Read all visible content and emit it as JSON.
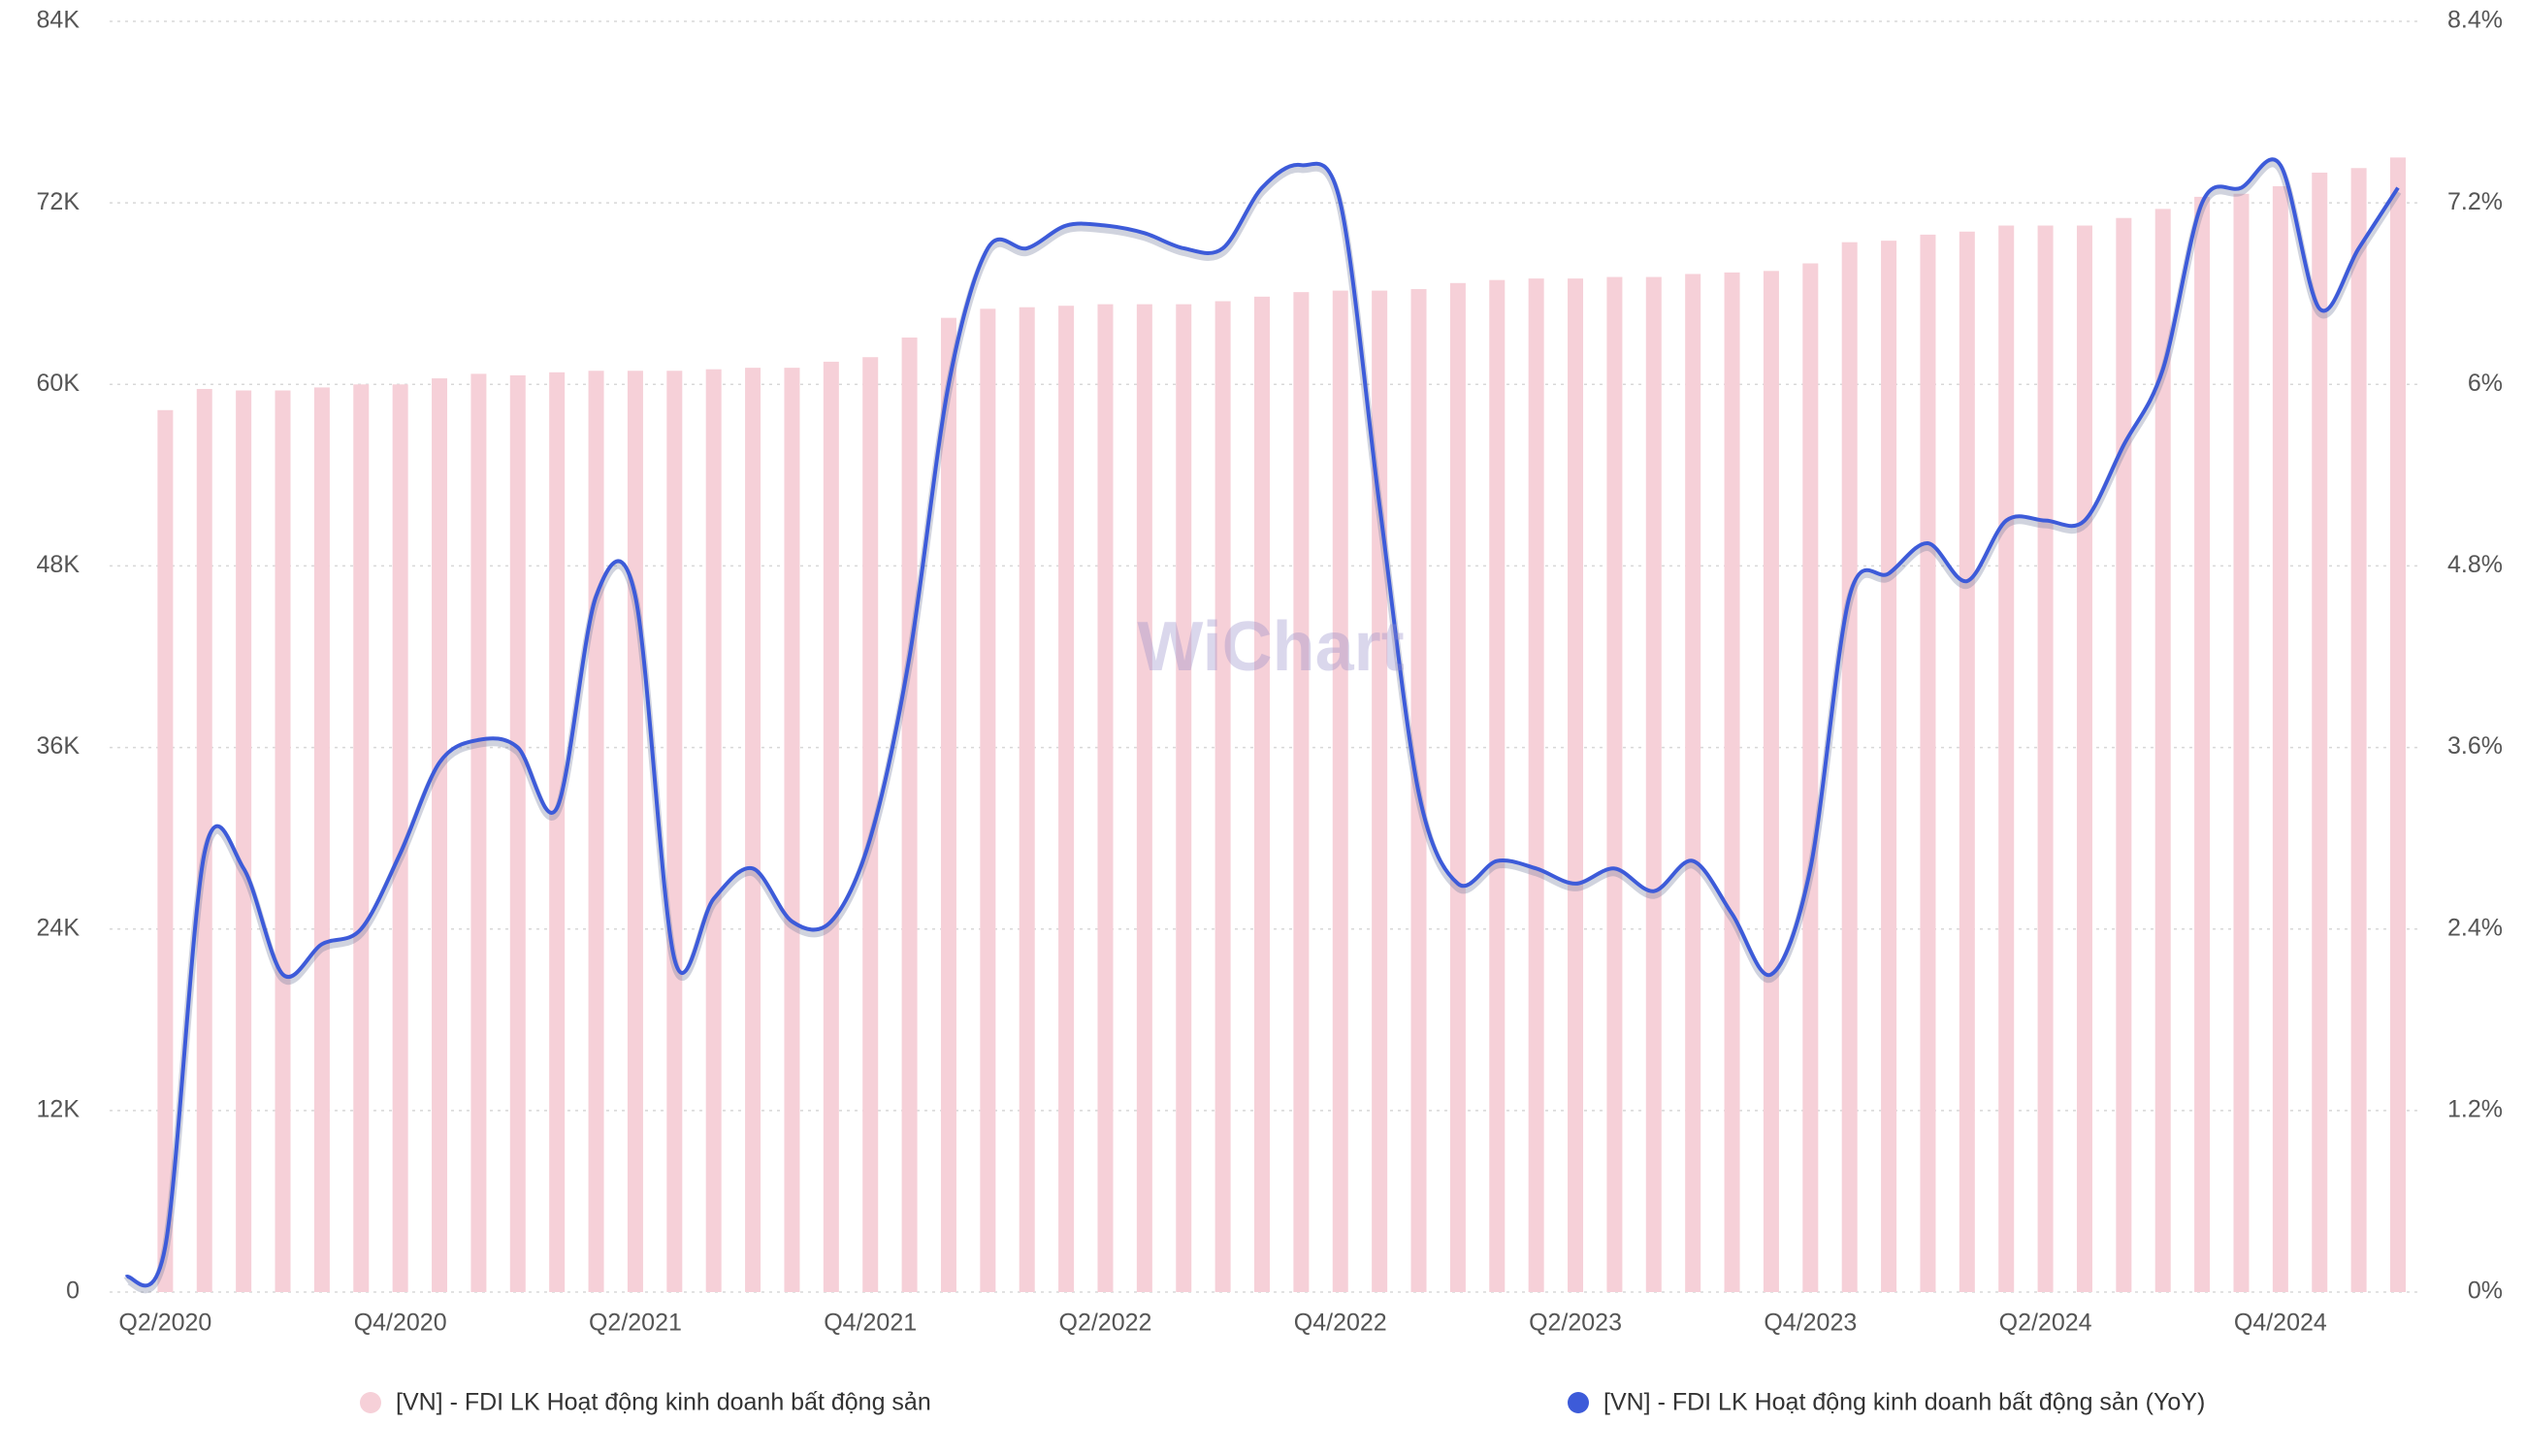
{
  "chart_data": {
    "type": "bar-line",
    "watermark": "WiChart",
    "categories": [
      null,
      "Q2/2020",
      null,
      null,
      null,
      null,
      null,
      "Q4/2020",
      null,
      null,
      null,
      null,
      null,
      "Q2/2021",
      null,
      null,
      null,
      null,
      null,
      "Q4/2021",
      null,
      null,
      null,
      null,
      null,
      "Q2/2022",
      null,
      null,
      null,
      null,
      null,
      "Q4/2022",
      null,
      null,
      null,
      null,
      null,
      "Q2/2023",
      null,
      null,
      null,
      null,
      null,
      "Q4/2023",
      null,
      null,
      null,
      null,
      null,
      "Q2/2024",
      null,
      null,
      null,
      null,
      null,
      "Q4/2024",
      null,
      null,
      null
    ],
    "series": [
      {
        "name": "[VN] - FDI LK Hoạt động kinh doanh bất động sản",
        "type": "bar",
        "color": "#f6d0d8",
        "axis": "y",
        "values": [
          null,
          58300,
          59700,
          59600,
          59600,
          59800,
          60000,
          60000,
          60400,
          60700,
          60600,
          60800,
          60900,
          60900,
          60900,
          61000,
          61100,
          61100,
          61500,
          61800,
          63100,
          64400,
          65000,
          65100,
          65200,
          65300,
          65300,
          65300,
          65500,
          65800,
          66100,
          66200,
          66200,
          66300,
          66700,
          66900,
          67000,
          67000,
          67100,
          67100,
          67300,
          67400,
          67500,
          68000,
          69400,
          69500,
          69900,
          70100,
          70500,
          70500,
          70500,
          71000,
          71600,
          72400,
          72600,
          73100,
          74000,
          74300,
          75000
        ]
      },
      {
        "name": "[VN] - FDI LK Hoạt động kinh doanh bất động sản (YoY)",
        "type": "line",
        "color": "#3d5bd9",
        "axis": "y2",
        "values": [
          0.1,
          0.3,
          2.9,
          2.8,
          2.1,
          2.3,
          2.4,
          2.9,
          3.5,
          3.65,
          3.6,
          3.2,
          4.6,
          4.6,
          2.2,
          2.6,
          2.8,
          2.45,
          2.45,
          3.0,
          4.2,
          6.0,
          6.9,
          6.9,
          7.05,
          7.05,
          7.0,
          6.9,
          6.9,
          7.3,
          7.45,
          7.2,
          5.2,
          3.3,
          2.7,
          2.85,
          2.8,
          2.7,
          2.8,
          2.65,
          2.85,
          2.5,
          2.1,
          2.8,
          4.6,
          4.75,
          4.95,
          4.7,
          5.1,
          5.1,
          5.1,
          5.6,
          6.1,
          7.2,
          7.3,
          7.45,
          6.5,
          6.9,
          7.3
        ]
      }
    ],
    "ylim": [
      0,
      84000
    ],
    "yticks": [
      0,
      {
        "value": 12000,
        "label": "12K"
      },
      {
        "value": 24000,
        "label": "24K"
      },
      {
        "value": 36000,
        "label": "36K"
      },
      {
        "value": 48000,
        "label": "48K"
      },
      {
        "value": 60000,
        "label": "60K"
      },
      {
        "value": 72000,
        "label": "72K"
      },
      {
        "value": 84000,
        "label": "84K"
      }
    ],
    "y2lim": [
      0,
      8.4
    ],
    "y2ticks": [
      {
        "value": 0,
        "label": "0%"
      },
      {
        "value": 1.2,
        "label": "1.2%"
      },
      {
        "value": 2.4,
        "label": "2.4%"
      },
      {
        "value": 3.6,
        "label": "3.6%"
      },
      {
        "value": 4.8,
        "label": "4.8%"
      },
      {
        "value": 6,
        "label": "6%"
      },
      {
        "value": 7.2,
        "label": "7.2%"
      },
      {
        "value": 8.4,
        "label": "8.4%"
      }
    ],
    "grid": true,
    "legend": "bottom"
  }
}
